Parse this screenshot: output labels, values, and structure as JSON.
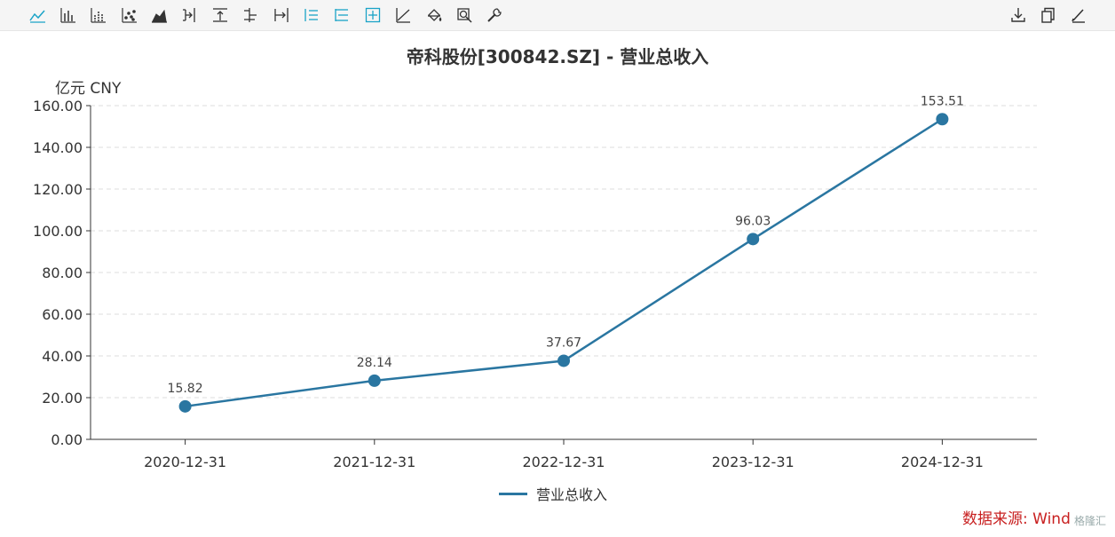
{
  "toolbar": {
    "left_icons": [
      "line-chart-icon",
      "bar-chart-icon",
      "stacked-bar-icon",
      "scatter-icon",
      "area-chart-icon",
      "step-right-icon",
      "align-top-icon",
      "align-center-icon",
      "align-right-icon",
      "list-icon",
      "list-indent-icon",
      "add-box-icon",
      "trend-icon",
      "fill-bucket-icon",
      "zoom-icon",
      "wrench-icon"
    ],
    "right_icons": [
      "download-icon",
      "copy-icon",
      "edit-icon"
    ],
    "colors": {
      "icon": "#333333",
      "icon_active": "#1aa3c7"
    }
  },
  "chart_data": {
    "type": "line",
    "title": "帝科股份[300842.SZ] - 营业总收入",
    "unit_label": "亿元  CNY",
    "categories": [
      "2020-12-31",
      "2021-12-31",
      "2022-12-31",
      "2023-12-31",
      "2024-12-31"
    ],
    "series": [
      {
        "name": "营业总收入",
        "values": [
          15.82,
          28.14,
          37.67,
          96.03,
          153.51
        ],
        "color": "#2a76a1"
      }
    ],
    "data_labels": [
      "15.82",
      "28.14",
      "37.67",
      "96.03",
      "153.51"
    ],
    "ylim": [
      0,
      160
    ],
    "yticks": [
      0,
      20,
      40,
      60,
      80,
      100,
      120,
      140,
      160
    ],
    "ytick_labels": [
      "0.00",
      "20.00",
      "40.00",
      "60.00",
      "80.00",
      "100.00",
      "120.00",
      "140.00",
      "160.00"
    ],
    "grid": true,
    "legend": "bottom-center"
  },
  "source_note": "数据来源: Wind",
  "watermark": "格隆汇"
}
